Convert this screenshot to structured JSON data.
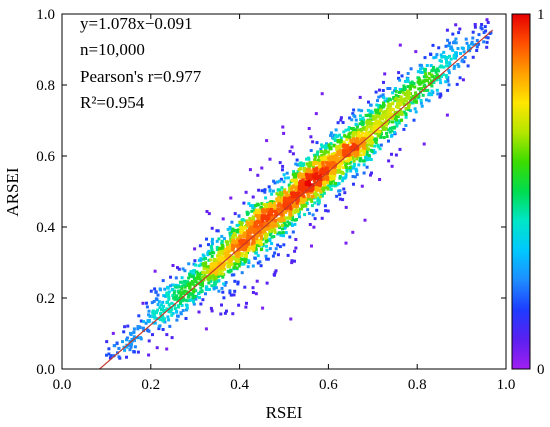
{
  "chart_data": {
    "type": "scatter",
    "subtype": "density-scatter",
    "title": "",
    "xlabel": "RSEI",
    "ylabel": "ARSEI",
    "xlim": [
      0.0,
      1.0
    ],
    "ylim": [
      0.0,
      1.0
    ],
    "x_ticks": [
      0.0,
      0.2,
      0.4,
      0.6,
      0.8,
      1.0
    ],
    "y_ticks": [
      0.0,
      0.2,
      0.4,
      0.6,
      0.8,
      1.0
    ],
    "x_tick_labels": [
      "0.0",
      "0.2",
      "0.4",
      "0.6",
      "0.8",
      "1.0"
    ],
    "y_tick_labels": [
      "0.0",
      "0.2",
      "0.4",
      "0.6",
      "0.8",
      "1.0"
    ],
    "grid": false,
    "annotations": [
      "y=1.078x−0.091",
      "n=10,000",
      "Pearson's r=0.977",
      "R²=0.954"
    ],
    "fit_line": {
      "slope": 1.078,
      "intercept": -0.091,
      "x_range": [
        0.085,
        0.97
      ],
      "color": "#c0392b"
    },
    "n": 10000,
    "pearson_r": 0.977,
    "r_squared": 0.954,
    "colorbar": {
      "min_label": "0",
      "max_label": "1",
      "range": [
        0,
        1
      ],
      "colors": [
        "#a020f0",
        "#5a20f0",
        "#1e3cff",
        "#1e8cff",
        "#00c8ff",
        "#00e6c8",
        "#00dc50",
        "#3cdc00",
        "#b4e600",
        "#ffe600",
        "#ffa000",
        "#ff5000",
        "#e60000"
      ]
    },
    "density_note": "Point colour encodes relative point density (0 to 1)"
  }
}
